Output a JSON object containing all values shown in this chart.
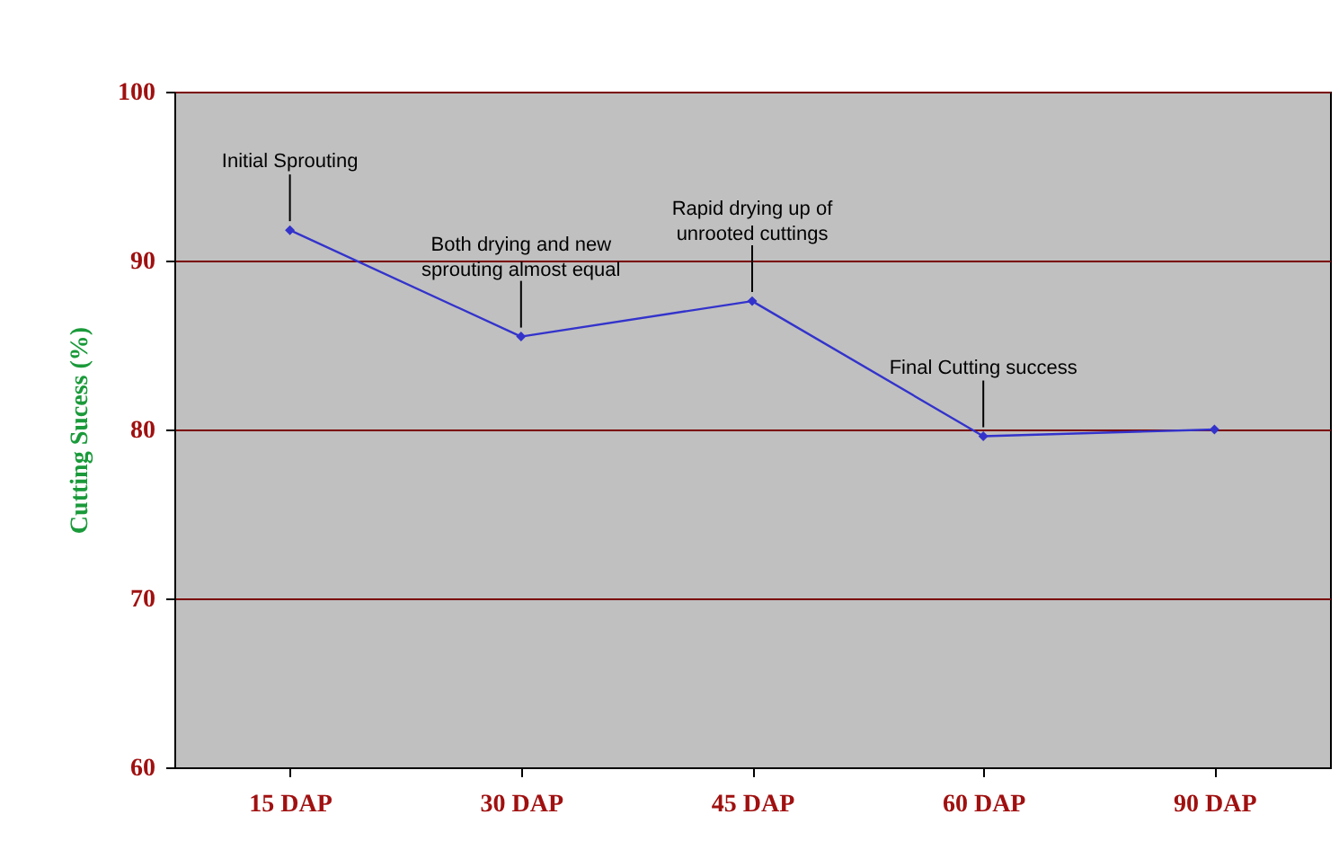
{
  "chart_data": {
    "type": "line",
    "ylabel": "Cutting Sucess (%)",
    "categories": [
      "15 DAP",
      "30 DAP",
      "45 DAP",
      "60 DAP",
      "90 DAP"
    ],
    "series": [
      {
        "color": "#3333cc",
        "values": [
          91.8,
          85.5,
          87.6,
          79.6,
          80.0
        ]
      }
    ],
    "ylim": [
      60,
      100
    ],
    "yticks": [
      60,
      70,
      80,
      90,
      100
    ],
    "grid": "y",
    "marker": "diamond",
    "line_style": "solid",
    "legend": false,
    "annotations": [
      {
        "text": "Initial Sprouting",
        "x": "15 DAP",
        "y": 91.8
      },
      {
        "text": "Both drying and new sprouting almost equal",
        "x": "30 DAP",
        "y": 85.5
      },
      {
        "text": "Rapid drying up of unrooted cuttings",
        "x": "45 DAP",
        "y": 87.6
      },
      {
        "text": "Final Cutting success",
        "x": "60 DAP",
        "y": 79.6
      }
    ]
  }
}
